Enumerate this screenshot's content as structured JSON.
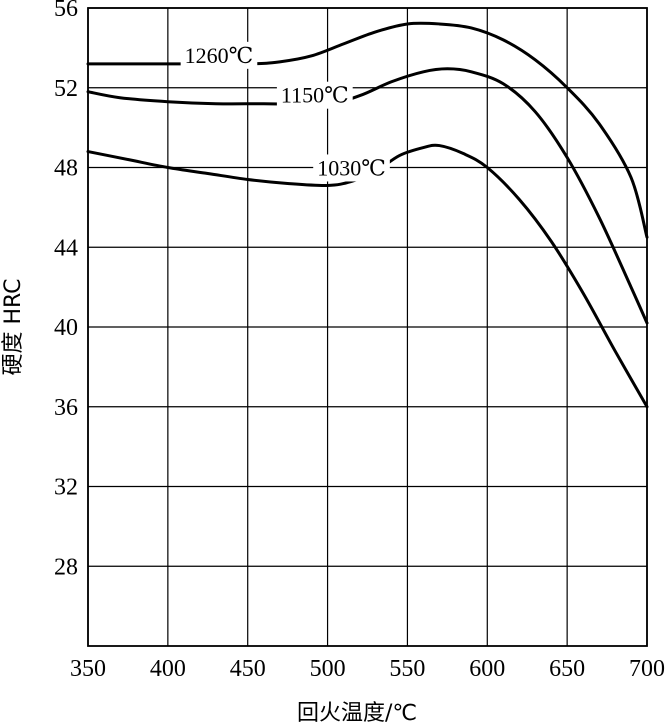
{
  "chart_data": {
    "type": "line",
    "title": "",
    "xlabel": "回火温度/℃",
    "ylabel": "硬度 HRC",
    "xlim": [
      350,
      700
    ],
    "ylim": [
      24,
      56
    ],
    "x_ticks": [
      350,
      400,
      450,
      500,
      550,
      600,
      650,
      700
    ],
    "y_ticks": [
      28,
      32,
      36,
      40,
      44,
      48,
      52,
      56
    ],
    "grid": true,
    "legend": "inline labels",
    "series": [
      {
        "name": "1260℃",
        "points": [
          [
            350,
            53.2
          ],
          [
            400,
            53.2
          ],
          [
            450,
            53.2
          ],
          [
            470,
            53.3
          ],
          [
            490,
            53.6
          ],
          [
            510,
            54.2
          ],
          [
            530,
            54.8
          ],
          [
            550,
            55.2
          ],
          [
            570,
            55.2
          ],
          [
            590,
            55.0
          ],
          [
            610,
            54.4
          ],
          [
            630,
            53.4
          ],
          [
            650,
            52.0
          ],
          [
            670,
            50.2
          ],
          [
            690,
            47.5
          ],
          [
            700,
            44.5
          ]
        ]
      },
      {
        "name": "1150℃",
        "points": [
          [
            350,
            51.8
          ],
          [
            370,
            51.5
          ],
          [
            400,
            51.3
          ],
          [
            430,
            51.2
          ],
          [
            460,
            51.2
          ],
          [
            500,
            51.2
          ],
          [
            520,
            51.6
          ],
          [
            540,
            52.3
          ],
          [
            560,
            52.8
          ],
          [
            575,
            52.95
          ],
          [
            590,
            52.8
          ],
          [
            610,
            52.2
          ],
          [
            630,
            50.8
          ],
          [
            650,
            48.5
          ],
          [
            670,
            45.5
          ],
          [
            690,
            42.0
          ],
          [
            700,
            40.2
          ]
        ]
      },
      {
        "name": "1030℃",
        "points": [
          [
            350,
            48.8
          ],
          [
            375,
            48.4
          ],
          [
            400,
            48.0
          ],
          [
            425,
            47.7
          ],
          [
            450,
            47.4
          ],
          [
            475,
            47.2
          ],
          [
            500,
            47.1
          ],
          [
            515,
            47.3
          ],
          [
            530,
            47.8
          ],
          [
            545,
            48.6
          ],
          [
            560,
            49.0
          ],
          [
            570,
            49.1
          ],
          [
            585,
            48.7
          ],
          [
            600,
            48.0
          ],
          [
            620,
            46.4
          ],
          [
            640,
            44.3
          ],
          [
            660,
            41.7
          ],
          [
            680,
            38.8
          ],
          [
            700,
            36.0
          ]
        ]
      }
    ]
  }
}
